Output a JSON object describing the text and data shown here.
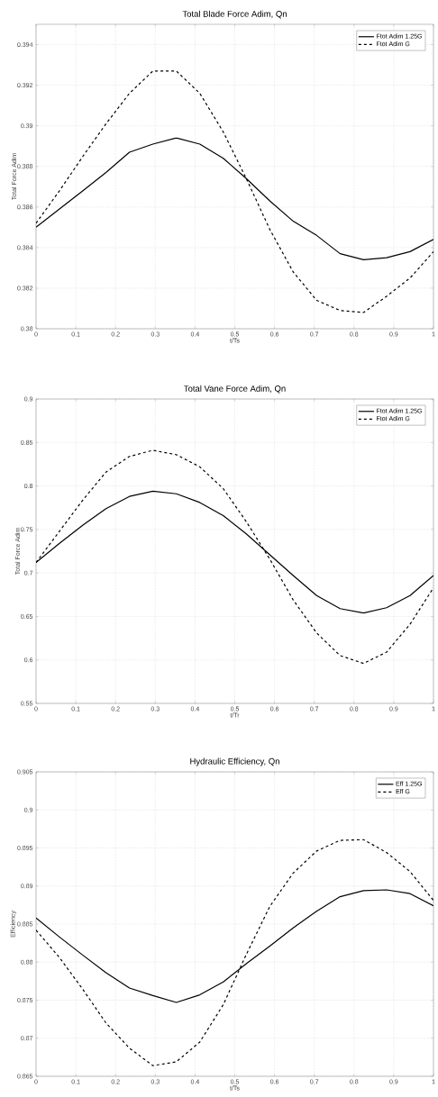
{
  "chart_data": [
    {
      "type": "line",
      "title": "Total Blade Force Adim, Qn",
      "xlabel": "t/Ts",
      "ylabel": "Total Force Adim",
      "x": [
        0,
        0.059,
        0.118,
        0.176,
        0.235,
        0.294,
        0.353,
        0.412,
        0.471,
        0.529,
        0.588,
        0.647,
        0.706,
        0.765,
        0.824,
        0.882,
        0.941,
        1
      ],
      "series": [
        {
          "name": "Ftot Adim 1.25G",
          "color": "#000000",
          "line_style": "solid",
          "values": [
            0.385,
            0.3859,
            0.3868,
            0.3877,
            0.3887,
            0.3891,
            0.3894,
            0.3891,
            0.3884,
            0.3874,
            0.3863,
            0.3853,
            0.3846,
            0.3837,
            0.3834,
            0.3835,
            0.3838,
            0.3844
          ]
        },
        {
          "name": "Ftot Adim G",
          "color": "#000000",
          "line_style": "dashed",
          "values": [
            0.3852,
            0.3868,
            0.3885,
            0.3901,
            0.3916,
            0.3927,
            0.3927,
            0.3916,
            0.3897,
            0.3874,
            0.3849,
            0.3828,
            0.3814,
            0.3809,
            0.3808,
            0.3816,
            0.3825,
            0.3838
          ]
        }
      ],
      "xlim": [
        0,
        1
      ],
      "ylim": [
        0.38,
        0.395
      ],
      "xticks": [
        0,
        0.1,
        0.2,
        0.3,
        0.4,
        0.5,
        0.6,
        0.7,
        0.8,
        0.9,
        1
      ],
      "yticks": [
        0.38,
        0.382,
        0.384,
        0.386,
        0.388,
        0.39,
        0.392,
        0.394
      ],
      "grid": true,
      "legend": "top right"
    },
    {
      "type": "line",
      "title": "Total Vane Force Adim, Qn",
      "xlabel": "t/Tr",
      "ylabel": "Total Force Adim",
      "x": [
        0,
        0.059,
        0.118,
        0.176,
        0.235,
        0.294,
        0.353,
        0.412,
        0.471,
        0.529,
        0.588,
        0.647,
        0.706,
        0.765,
        0.824,
        0.882,
        0.941,
        1
      ],
      "series": [
        {
          "name": "Ftot Adim 1.25G",
          "color": "#000000",
          "line_style": "solid",
          "values": [
            0.712,
            0.734,
            0.755,
            0.774,
            0.788,
            0.794,
            0.791,
            0.781,
            0.766,
            0.745,
            0.721,
            0.697,
            0.674,
            0.659,
            0.654,
            0.66,
            0.674,
            0.697
          ]
        },
        {
          "name": "Ftot Adim G",
          "color": "#000000",
          "line_style": "dashed",
          "values": [
            0.712,
            0.748,
            0.784,
            0.816,
            0.834,
            0.841,
            0.836,
            0.822,
            0.797,
            0.759,
            0.716,
            0.669,
            0.631,
            0.605,
            0.596,
            0.609,
            0.641,
            0.683
          ]
        }
      ],
      "xlim": [
        0,
        1
      ],
      "ylim": [
        0.55,
        0.9
      ],
      "xticks": [
        0,
        0.1,
        0.2,
        0.3,
        0.4,
        0.5,
        0.6,
        0.7,
        0.8,
        0.9,
        1
      ],
      "yticks": [
        0.55,
        0.6,
        0.65,
        0.7,
        0.75,
        0.8,
        0.85,
        0.9
      ],
      "grid": true,
      "legend": "top right"
    },
    {
      "type": "line",
      "title": "Hydraulic Efficiency, Qn",
      "xlabel": "t/Ts",
      "ylabel": "Efficiency",
      "x": [
        0,
        0.059,
        0.118,
        0.176,
        0.235,
        0.294,
        0.353,
        0.412,
        0.471,
        0.529,
        0.588,
        0.647,
        0.706,
        0.765,
        0.824,
        0.882,
        0.941,
        1
      ],
      "series": [
        {
          "name": "Eff 1.25G",
          "color": "#000000",
          "line_style": "solid",
          "values": [
            0.8858,
            0.8833,
            0.8809,
            0.8786,
            0.8766,
            0.8756,
            0.8747,
            0.8757,
            0.8774,
            0.8798,
            0.8821,
            0.8845,
            0.8867,
            0.8886,
            0.8894,
            0.8895,
            0.889,
            0.8874
          ]
        },
        {
          "name": "Eff G",
          "color": "#000000",
          "line_style": "dashed",
          "values": [
            0.8842,
            0.8806,
            0.8764,
            0.872,
            0.8687,
            0.8664,
            0.8669,
            0.8695,
            0.8744,
            0.881,
            0.8873,
            0.8917,
            0.8946,
            0.896,
            0.8961,
            0.8944,
            0.8919,
            0.8881
          ]
        }
      ],
      "xlim": [
        0,
        1
      ],
      "ylim": [
        0.865,
        0.905
      ],
      "xticks": [
        0,
        0.1,
        0.2,
        0.3,
        0.4,
        0.5,
        0.6,
        0.7,
        0.8,
        0.9,
        1
      ],
      "yticks": [
        0.865,
        0.87,
        0.875,
        0.88,
        0.885,
        0.89,
        0.895,
        0.9,
        0.905
      ],
      "grid": true,
      "legend": "top right"
    }
  ]
}
